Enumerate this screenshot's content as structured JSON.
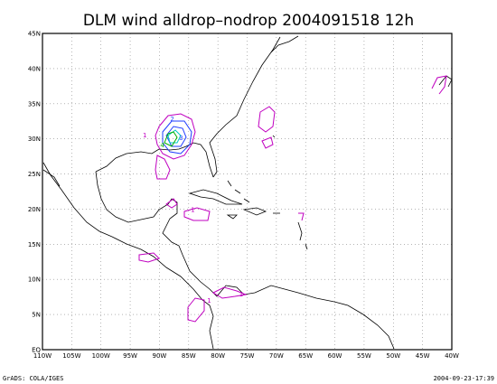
{
  "title": "DLM wind alldrop–nodrop 2004091518 12h",
  "footer": {
    "left": "GrADS: COLA/IGES",
    "right": "2004-09-23-17:39"
  },
  "map": {
    "lon_range": [
      -110,
      -40
    ],
    "lat_range": [
      0,
      45
    ],
    "grid": true,
    "lon_ticks": [
      "110W",
      "105W",
      "100W",
      "95W",
      "90W",
      "85W",
      "80W",
      "75W",
      "70W",
      "65W",
      "60W",
      "55W",
      "50W",
      "45W",
      "40W"
    ],
    "lat_ticks": [
      "EQ",
      "5N",
      "10N",
      "15N",
      "20N",
      "25N",
      "30N",
      "35N",
      "40N",
      "45N"
    ]
  },
  "colors": {
    "magenta": "#c000c0",
    "blue": "#1e3cff",
    "cyan": "#00c8c8",
    "green": "#00b000",
    "coast": "#000000"
  },
  "contour_labels": [
    {
      "text": "1",
      "lon": -92.5,
      "lat": 30.2,
      "color": "#c000c0"
    },
    {
      "text": "2",
      "lon": -87.8,
      "lat": 32.5,
      "color": "#1e3cff"
    },
    {
      "text": "3",
      "lon": -86.3,
      "lat": 29.8,
      "color": "#1e3cff"
    },
    {
      "text": "4",
      "lon": -89.5,
      "lat": 28.8,
      "color": "#00b000"
    },
    {
      "text": "1",
      "lon": -84.3,
      "lat": 19.6,
      "color": "#c000c0"
    },
    {
      "text": "1",
      "lon": -81.5,
      "lat": 6.7,
      "color": "#c000c0"
    },
    {
      "text": "1",
      "lon": -76.0,
      "lat": 7.6,
      "color": "#c000c0"
    }
  ]
}
